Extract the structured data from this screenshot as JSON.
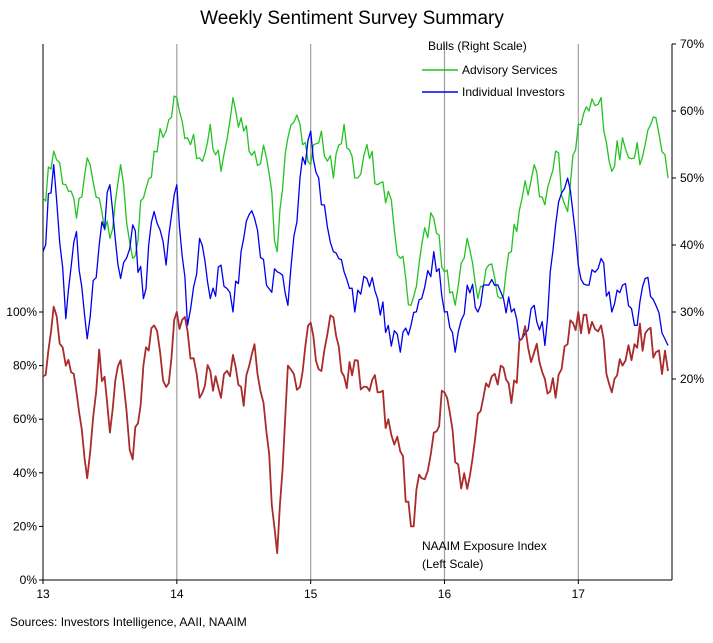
{
  "chart_data": {
    "type": "line",
    "title": "Weekly Sentiment Survey Summary",
    "x_range": [
      13,
      17.7
    ],
    "x_ticks": [
      "13",
      "14",
      "15",
      "16",
      "17"
    ],
    "vertical_gridlines_at": [
      14,
      15,
      16,
      17
    ],
    "left_axis": {
      "range": [
        0,
        200
      ],
      "ticks": [
        0,
        20,
        40,
        60,
        80,
        100
      ],
      "tick_labels": [
        "0%",
        "20%",
        "40%",
        "60%",
        "80%",
        "100%"
      ]
    },
    "right_axis": {
      "range": [
        -10,
        70
      ],
      "ticks": [
        20,
        30,
        40,
        50,
        60,
        70
      ],
      "tick_labels": [
        "20%",
        "30%",
        "40%",
        "50%",
        "60%",
        "70%"
      ]
    },
    "legend": {
      "heading": "Bulls (Right Scale)",
      "placement": "top-center",
      "entries": [
        "Advisory Services",
        "Individual Investors"
      ]
    },
    "annotation": {
      "line1": "NAAIM  Exposure Index",
      "line2": "(Left Scale)"
    },
    "series": [
      {
        "name": "Advisory Services",
        "axis": "right",
        "color": "#22c322",
        "x": [
          13.0,
          13.08,
          13.17,
          13.25,
          13.33,
          13.42,
          13.5,
          13.58,
          13.67,
          13.75,
          13.83,
          13.92,
          14.0,
          14.08,
          14.17,
          14.25,
          14.33,
          14.42,
          14.5,
          14.58,
          14.67,
          14.75,
          14.83,
          14.92,
          15.0,
          15.08,
          15.17,
          15.25,
          15.33,
          15.42,
          15.5,
          15.58,
          15.67,
          15.75,
          15.83,
          15.92,
          16.0,
          16.08,
          16.17,
          16.25,
          16.33,
          16.42,
          16.5,
          16.58,
          16.67,
          16.75,
          16.83,
          16.92,
          17.0,
          17.08,
          17.17,
          17.25,
          17.33,
          17.42,
          17.5,
          17.58,
          17.67
        ],
        "values": [
          47,
          54,
          49,
          44,
          53,
          47,
          41,
          52,
          38,
          47,
          54,
          57,
          62,
          56,
          53,
          58,
          51,
          62,
          57,
          54,
          53,
          39,
          56,
          58,
          52,
          57,
          50,
          58,
          50,
          55,
          49,
          48,
          38,
          31,
          40,
          44,
          36,
          31,
          41,
          32,
          37,
          32,
          39,
          47,
          52,
          46,
          54,
          45,
          58,
          60,
          62,
          51,
          56,
          53,
          55,
          59,
          50
        ]
      },
      {
        "name": "Individual Investors",
        "axis": "right",
        "color": "#0000ee",
        "x": [
          13.0,
          13.08,
          13.17,
          13.25,
          13.33,
          13.42,
          13.5,
          13.58,
          13.67,
          13.75,
          13.83,
          13.92,
          14.0,
          14.08,
          14.17,
          14.25,
          14.33,
          14.42,
          14.5,
          14.58,
          14.67,
          14.75,
          14.83,
          14.92,
          15.0,
          15.08,
          15.17,
          15.25,
          15.33,
          15.42,
          15.5,
          15.58,
          15.67,
          15.75,
          15.83,
          15.92,
          16.0,
          16.08,
          16.17,
          16.25,
          16.33,
          16.42,
          16.5,
          16.58,
          16.67,
          16.75,
          16.83,
          16.92,
          17.0,
          17.08,
          17.17,
          17.25,
          17.33,
          17.42,
          17.5,
          17.58,
          17.67
        ],
        "values": [
          39,
          52,
          29,
          42,
          26,
          40,
          49,
          35,
          43,
          32,
          45,
          37,
          49,
          28,
          41,
          32,
          37,
          30,
          41,
          44,
          34,
          36,
          31,
          50,
          57,
          46,
          39,
          36,
          30,
          35,
          32,
          28,
          24,
          28,
          32,
          39,
          30,
          24,
          34,
          30,
          34,
          33,
          30,
          26,
          31,
          25,
          43,
          50,
          37,
          34,
          38,
          30,
          34,
          28,
          35,
          31,
          25
        ]
      },
      {
        "name": "NAAIM Exposure Index",
        "axis": "left",
        "color": "#aa2b2b",
        "x": [
          13.0,
          13.08,
          13.17,
          13.25,
          13.33,
          13.42,
          13.5,
          13.58,
          13.67,
          13.75,
          13.83,
          13.92,
          14.0,
          14.08,
          14.17,
          14.25,
          14.33,
          14.42,
          14.5,
          14.58,
          14.67,
          14.75,
          14.83,
          14.92,
          15.0,
          15.08,
          15.17,
          15.25,
          15.33,
          15.42,
          15.5,
          15.58,
          15.67,
          15.75,
          15.83,
          15.92,
          16.0,
          16.08,
          16.17,
          16.25,
          16.33,
          16.42,
          16.5,
          16.58,
          16.67,
          16.75,
          16.83,
          16.92,
          17.0,
          17.08,
          17.17,
          17.25,
          17.33,
          17.42,
          17.5,
          17.58,
          17.67
        ],
        "values": [
          76,
          102,
          80,
          70,
          38,
          86,
          55,
          82,
          45,
          80,
          95,
          72,
          100,
          93,
          68,
          78,
          68,
          84,
          65,
          88,
          55,
          10,
          80,
          72,
          96,
          78,
          98,
          76,
          82,
          72,
          70,
          60,
          48,
          20,
          38,
          55,
          70,
          44,
          34,
          62,
          72,
          80,
          66,
          90,
          85,
          75,
          68,
          88,
          100,
          92,
          95,
          70,
          80,
          88,
          92,
          85,
          78
        ]
      }
    ]
  },
  "sources": "Sources: Investors Intelligence, AAII, NAAIM"
}
